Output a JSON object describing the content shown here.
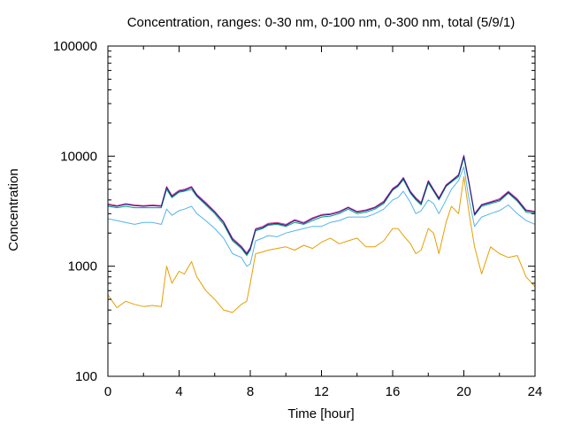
{
  "chart_data": {
    "type": "line",
    "title": "Concentration, ranges: 0-30 nm, 0-100 nm, 0-300 nm, total (5/9/1)",
    "xlabel": "Time [hour]",
    "ylabel": "Concentration",
    "xlim": [
      0,
      24
    ],
    "ylim": [
      100,
      100000
    ],
    "yscale": "log",
    "grid": false,
    "x_ticks": [
      0,
      4,
      8,
      12,
      16,
      20,
      24
    ],
    "x_tick_labels": [
      "0",
      "4",
      "8",
      "12",
      "16",
      "20",
      "24"
    ],
    "y_ticks": [
      100,
      1000,
      10000,
      100000
    ],
    "y_tick_labels": [
      "100",
      "1000",
      "10000",
      "100000"
    ],
    "x": [
      0,
      0.5,
      1,
      1.5,
      2,
      2.5,
      3,
      3.3,
      3.6,
      4,
      4.3,
      4.7,
      5,
      5.5,
      6,
      6.5,
      7,
      7.5,
      7.8,
      8,
      8.3,
      8.7,
      9,
      9.5,
      10,
      10.5,
      11,
      11.5,
      12,
      12.5,
      13,
      13.5,
      14,
      14.5,
      15,
      15.5,
      16,
      16.3,
      16.6,
      17,
      17.3,
      17.6,
      18,
      18.3,
      18.6,
      19,
      19.3,
      19.7,
      20,
      20.3,
      20.6,
      21,
      21.5,
      22,
      22.5,
      23,
      23.5,
      24
    ],
    "series": [
      {
        "color": "#e69f00",
        "values": [
          550,
          420,
          480,
          450,
          430,
          440,
          430,
          1000,
          700,
          900,
          850,
          1100,
          800,
          600,
          500,
          400,
          380,
          450,
          480,
          700,
          1300,
          1350,
          1400,
          1450,
          1500,
          1400,
          1550,
          1450,
          1650,
          1800,
          1600,
          1700,
          1800,
          1500,
          1500,
          1700,
          2200,
          2200,
          1900,
          1600,
          1300,
          1400,
          2200,
          2000,
          1300,
          2500,
          3500,
          3000,
          6500,
          3000,
          1500,
          850,
          1500,
          1300,
          1200,
          1250,
          800,
          650
        ]
      },
      {
        "color": "#56b4e9",
        "values": [
          2700,
          2600,
          2500,
          2400,
          2500,
          2500,
          2400,
          3300,
          2900,
          3200,
          3300,
          3500,
          3000,
          2600,
          2200,
          1800,
          1300,
          1200,
          1000,
          1050,
          1700,
          1800,
          1900,
          1850,
          2000,
          2100,
          2200,
          2300,
          2300,
          2500,
          2600,
          2800,
          2800,
          2800,
          3000,
          3300,
          4000,
          4200,
          4800,
          3800,
          3000,
          3200,
          4000,
          3700,
          3000,
          4000,
          5000,
          6000,
          8000,
          4000,
          2300,
          2800,
          3000,
          3200,
          3600,
          3000,
          2600,
          2400
        ]
      },
      {
        "color": "#009e73",
        "values": [
          3500,
          3400,
          3500,
          3400,
          3400,
          3400,
          3400,
          5000,
          4200,
          4700,
          4800,
          5000,
          4300,
          3600,
          3000,
          2400,
          1700,
          1450,
          1250,
          1400,
          2100,
          2200,
          2350,
          2400,
          2300,
          2500,
          2400,
          2600,
          2800,
          2850,
          3000,
          3300,
          3000,
          3100,
          3300,
          3700,
          4900,
          5300,
          6100,
          4600,
          4000,
          3600,
          5700,
          4800,
          4000,
          5300,
          5800,
          6500,
          9700,
          5500,
          2900,
          3500,
          3700,
          3900,
          4600,
          3900,
          3100,
          3000
        ]
      },
      {
        "color": "#e0339a",
        "values": [
          3700,
          3550,
          3700,
          3600,
          3550,
          3600,
          3550,
          5300,
          4400,
          4900,
          5000,
          5300,
          4500,
          3800,
          3150,
          2550,
          1800,
          1520,
          1320,
          1480,
          2200,
          2300,
          2450,
          2500,
          2400,
          2650,
          2500,
          2750,
          2950,
          3000,
          3150,
          3450,
          3150,
          3250,
          3450,
          3900,
          5100,
          5500,
          6400,
          4800,
          4200,
          3800,
          6000,
          5000,
          4200,
          5500,
          6000,
          6800,
          10200,
          5700,
          3000,
          3650,
          3850,
          4100,
          4800,
          4100,
          3250,
          3150
        ]
      },
      {
        "color": "#1c1c8c",
        "values": [
          3600,
          3500,
          3650,
          3550,
          3500,
          3550,
          3500,
          5200,
          4300,
          4800,
          4900,
          5200,
          4400,
          3700,
          3100,
          2500,
          1750,
          1490,
          1290,
          1450,
          2150,
          2250,
          2400,
          2450,
          2350,
          2600,
          2450,
          2700,
          2900,
          2950,
          3100,
          3400,
          3100,
          3200,
          3400,
          3800,
          5000,
          5400,
          6300,
          4700,
          4100,
          3700,
          5900,
          4900,
          4100,
          5400,
          5900,
          6700,
          10000,
          5600,
          2950,
          3600,
          3800,
          4000,
          4700,
          4000,
          3200,
          3100
        ]
      }
    ]
  }
}
